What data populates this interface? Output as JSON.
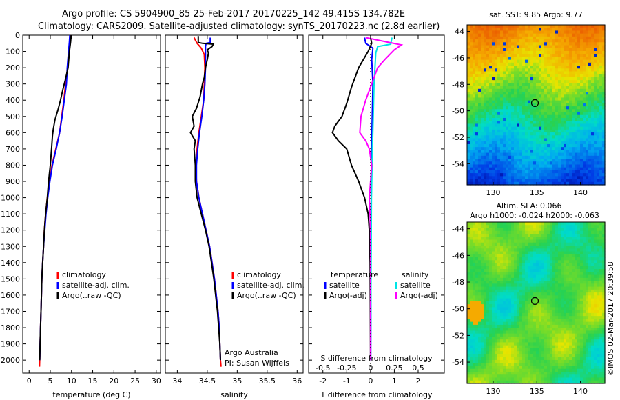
{
  "header": {
    "line1": "Argo profile: CS 5904900_85 25-Feb-2017 20170225_142 49.415S 134.782E",
    "line2": "Climatology: CARS2009. Satellite-adjusted climatology: synTS_20170223.nc (2.8d earlier)"
  },
  "side": {
    "date_stamp": "©IMOS 02-Mar-2017 20:39:58"
  },
  "chart_data": [
    {
      "type": "line",
      "id": "temperature",
      "xlabel": "temperature (deg C)",
      "xlim": [
        -1.5,
        31
      ],
      "xticks": [
        "0",
        "5",
        "10",
        "15",
        "20",
        "25",
        "30"
      ],
      "xtick_values": [
        0,
        5,
        10,
        15,
        20,
        25,
        30
      ],
      "ylim": [
        2080,
        0
      ],
      "yticks": [
        "0",
        "100",
        "200",
        "300",
        "400",
        "500",
        "600",
        "700",
        "800",
        "900",
        "1000",
        "1100",
        "1200",
        "1300",
        "1400",
        "1500",
        "1600",
        "1700",
        "1800",
        "1900",
        "2000"
      ],
      "ytick_values": [
        0,
        100,
        200,
        300,
        400,
        500,
        600,
        700,
        800,
        900,
        1000,
        1100,
        1200,
        1300,
        1400,
        1500,
        1600,
        1700,
        1800,
        1900,
        2000
      ],
      "legend": [
        "climatology",
        "satellite-adj. clim.",
        "Argo(..raw -QC)"
      ],
      "colors": {
        "climatology": "#ff0000",
        "satellite": "#0000ff",
        "argo": "#000000"
      },
      "series": [
        {
          "name": "climatology",
          "color": "#ff0000",
          "points": [
            [
              9.8,
              0
            ],
            [
              9.7,
              40
            ],
            [
              9.4,
              100
            ],
            [
              9.1,
              200
            ],
            [
              8.6,
              300
            ],
            [
              8.2,
              400
            ],
            [
              7.7,
              500
            ],
            [
              7.2,
              600
            ],
            [
              6.3,
              700
            ],
            [
              5.4,
              800
            ],
            [
              4.8,
              900
            ],
            [
              4.3,
              1000
            ],
            [
              3.9,
              1100
            ],
            [
              3.6,
              1200
            ],
            [
              3.4,
              1300
            ],
            [
              3.2,
              1400
            ],
            [
              3.0,
              1500
            ],
            [
              2.9,
              1600
            ],
            [
              2.8,
              1700
            ],
            [
              2.7,
              1800
            ],
            [
              2.6,
              1900
            ],
            [
              2.5,
              2000
            ],
            [
              2.45,
              2040
            ]
          ]
        },
        {
          "name": "satellite-adj. clim.",
          "color": "#0000ff",
          "points": [
            [
              9.6,
              0
            ],
            [
              9.5,
              40
            ],
            [
              9.3,
              100
            ],
            [
              9.0,
              200
            ],
            [
              8.8,
              300
            ],
            [
              8.3,
              400
            ],
            [
              7.8,
              500
            ],
            [
              7.2,
              600
            ],
            [
              6.4,
              700
            ],
            [
              5.5,
              800
            ],
            [
              4.9,
              900
            ],
            [
              4.4,
              1000
            ],
            [
              4.0,
              1100
            ],
            [
              3.7,
              1200
            ],
            [
              3.4,
              1300
            ],
            [
              3.2,
              1400
            ],
            [
              3.0,
              1500
            ],
            [
              2.9,
              1600
            ],
            [
              2.8,
              1700
            ],
            [
              2.7,
              1800
            ],
            [
              2.6,
              1900
            ],
            [
              2.5,
              2000
            ]
          ]
        },
        {
          "name": "Argo(..raw -QC)",
          "color": "#000000",
          "points": [
            [
              9.9,
              0
            ],
            [
              9.8,
              40
            ],
            [
              9.5,
              100
            ],
            [
              9.2,
              200
            ],
            [
              8.5,
              280
            ],
            [
              8.0,
              330
            ],
            [
              7.4,
              400
            ],
            [
              6.8,
              460
            ],
            [
              6.1,
              520
            ],
            [
              5.7,
              580
            ],
            [
              5.5,
              620
            ],
            [
              5.3,
              700
            ],
            [
              5.0,
              800
            ],
            [
              4.6,
              900
            ],
            [
              4.3,
              1000
            ],
            [
              3.9,
              1100
            ],
            [
              3.6,
              1200
            ],
            [
              3.4,
              1300
            ],
            [
              3.2,
              1400
            ],
            [
              3.0,
              1500
            ],
            [
              2.9,
              1600
            ],
            [
              2.8,
              1700
            ],
            [
              2.7,
              1800
            ],
            [
              2.6,
              1900
            ],
            [
              2.5,
              2000
            ]
          ]
        }
      ]
    },
    {
      "type": "line",
      "id": "salinity",
      "xlabel": "salinity",
      "xlim": [
        33.8,
        36.1
      ],
      "xticks": [
        "34",
        "34.5",
        "35",
        "35.5",
        "36"
      ],
      "xtick_values": [
        34,
        34.5,
        35,
        35.5,
        36
      ],
      "ylim": [
        2080,
        0
      ],
      "legend": [
        "climatology",
        "satellite-adj. clim.",
        "Argo(..raw -QC)"
      ],
      "annotations": [
        "Argo Australia",
        "PI: Susan Wijffels"
      ],
      "series": [
        {
          "name": "climatology",
          "color": "#ff0000",
          "points": [
            [
              34.28,
              15
            ],
            [
              34.33,
              50
            ],
            [
              34.4,
              80
            ],
            [
              34.45,
              120
            ],
            [
              34.46,
              200
            ],
            [
              34.45,
              300
            ],
            [
              34.44,
              400
            ],
            [
              34.4,
              500
            ],
            [
              34.36,
              600
            ],
            [
              34.33,
              700
            ],
            [
              34.31,
              800
            ],
            [
              34.32,
              900
            ],
            [
              34.36,
              1000
            ],
            [
              34.42,
              1100
            ],
            [
              34.48,
              1200
            ],
            [
              34.54,
              1300
            ],
            [
              34.58,
              1400
            ],
            [
              34.62,
              1500
            ],
            [
              34.65,
              1600
            ],
            [
              34.68,
              1700
            ],
            [
              34.7,
              1800
            ],
            [
              34.71,
              1900
            ],
            [
              34.72,
              2000
            ],
            [
              34.73,
              2040
            ]
          ]
        },
        {
          "name": "satellite-adj. clim.",
          "color": "#0000ff",
          "points": [
            [
              34.55,
              15
            ],
            [
              34.55,
              45
            ],
            [
              34.48,
              50
            ],
            [
              34.47,
              70
            ],
            [
              34.47,
              110
            ],
            [
              34.47,
              200
            ],
            [
              34.46,
              300
            ],
            [
              34.44,
              400
            ],
            [
              34.41,
              500
            ],
            [
              34.37,
              600
            ],
            [
              34.34,
              700
            ],
            [
              34.32,
              800
            ],
            [
              34.32,
              900
            ],
            [
              34.36,
              1000
            ],
            [
              34.42,
              1100
            ],
            [
              34.48,
              1200
            ],
            [
              34.54,
              1300
            ],
            [
              34.58,
              1400
            ],
            [
              34.62,
              1500
            ],
            [
              34.65,
              1600
            ],
            [
              34.68,
              1700
            ],
            [
              34.7,
              1800
            ],
            [
              34.71,
              1900
            ],
            [
              34.72,
              2000
            ]
          ]
        },
        {
          "name": "Argo(..raw -QC)",
          "color": "#000000",
          "points": [
            [
              34.35,
              5
            ],
            [
              34.35,
              45
            ],
            [
              34.42,
              50
            ],
            [
              34.6,
              55
            ],
            [
              34.58,
              70
            ],
            [
              34.5,
              90
            ],
            [
              34.52,
              110
            ],
            [
              34.5,
              150
            ],
            [
              34.47,
              200
            ],
            [
              34.45,
              260
            ],
            [
              34.42,
              300
            ],
            [
              34.38,
              380
            ],
            [
              34.32,
              450
            ],
            [
              34.25,
              500
            ],
            [
              34.28,
              560
            ],
            [
              34.22,
              600
            ],
            [
              34.3,
              650
            ],
            [
              34.28,
              700
            ],
            [
              34.3,
              800
            ],
            [
              34.3,
              900
            ],
            [
              34.33,
              1000
            ],
            [
              34.4,
              1100
            ],
            [
              34.47,
              1200
            ],
            [
              34.53,
              1300
            ],
            [
              34.57,
              1400
            ],
            [
              34.61,
              1500
            ],
            [
              34.64,
              1600
            ],
            [
              34.67,
              1700
            ],
            [
              34.69,
              1800
            ],
            [
              34.71,
              1900
            ],
            [
              34.72,
              2000
            ]
          ]
        }
      ]
    },
    {
      "type": "line",
      "id": "differences",
      "xlabel": "T difference from climatology",
      "xlabel_top": "S difference from climatology",
      "xlim": [
        -2.6,
        3.1
      ],
      "xticks": [
        "-2",
        "-1",
        "0",
        "1",
        "2"
      ],
      "xtick_values": [
        -2,
        -1,
        0,
        1,
        2
      ],
      "top_ticks": [
        "-0.5",
        "-0.25",
        "0",
        "0.25",
        "0.5"
      ],
      "ylim": [
        2080,
        0
      ],
      "legend_temperature": [
        "temperature",
        "satellite",
        "Argo(-adj)"
      ],
      "legend_salinity": [
        "salinity",
        "satellite",
        "Argo(-adj)"
      ],
      "series": [
        {
          "name": "satellite",
          "quantity": "temperature",
          "color": "#0000ff",
          "points": [
            [
              -0.25,
              15
            ],
            [
              -0.2,
              50
            ],
            [
              0.1,
              80
            ],
            [
              0.05,
              150
            ],
            [
              0.1,
              300
            ],
            [
              0.06,
              600
            ],
            [
              0.04,
              900
            ],
            [
              0.02,
              1200
            ],
            [
              0.01,
              2000
            ]
          ]
        },
        {
          "name": "satellite",
          "quantity": "salinity",
          "color": "#00e5e5",
          "points": [
            [
              0.9,
              15
            ],
            [
              0.85,
              55
            ],
            [
              0.3,
              70
            ],
            [
              0.22,
              110
            ],
            [
              0.15,
              300
            ],
            [
              0.08,
              700
            ],
            [
              0.04,
              1000
            ],
            [
              0.02,
              1500
            ],
            [
              0.0,
              2000
            ]
          ]
        },
        {
          "name": "Argo(-adj)",
          "quantity": "temperature",
          "color": "#000000",
          "points": [
            [
              0.0,
              15
            ],
            [
              0.05,
              50
            ],
            [
              -0.1,
              100
            ],
            [
              -0.5,
              200
            ],
            [
              -0.8,
              320
            ],
            [
              -1.0,
              420
            ],
            [
              -1.2,
              500
            ],
            [
              -1.5,
              560
            ],
            [
              -1.6,
              600
            ],
            [
              -1.35,
              650
            ],
            [
              -1.0,
              700
            ],
            [
              -0.8,
              800
            ],
            [
              -0.5,
              900
            ],
            [
              -0.25,
              1000
            ],
            [
              -0.1,
              1100
            ],
            [
              -0.05,
              1200
            ],
            [
              -0.02,
              1400
            ],
            [
              0.0,
              2000
            ]
          ]
        },
        {
          "name": "Argo(-adj)",
          "quantity": "salinity",
          "color": "#ff00ff",
          "points": [
            [
              -0.2,
              15
            ],
            [
              0.8,
              45
            ],
            [
              1.3,
              60
            ],
            [
              1.0,
              90
            ],
            [
              0.6,
              150
            ],
            [
              0.3,
              200
            ],
            [
              0.1,
              280
            ],
            [
              -0.2,
              400
            ],
            [
              -0.4,
              500
            ],
            [
              -0.45,
              600
            ],
            [
              -0.2,
              650
            ],
            [
              -0.05,
              700
            ],
            [
              0.05,
              800
            ],
            [
              0.0,
              900
            ],
            [
              -0.05,
              1000
            ],
            [
              0.0,
              1200
            ],
            [
              0.0,
              2000
            ]
          ]
        }
      ]
    },
    {
      "type": "heatmap",
      "id": "sst_map",
      "title": "sat. SST: 9.85  Argo: 9.77",
      "xticks": [
        "130",
        "135",
        "140"
      ],
      "yticks": [
        "-44",
        "-46",
        "-48",
        "-50",
        "-52",
        "-54"
      ],
      "xlim": [
        127,
        142.8
      ],
      "ylim": [
        -55.6,
        -43.5
      ],
      "marker": {
        "lon": 134.782,
        "lat": -49.415
      }
    },
    {
      "type": "heatmap",
      "id": "sla_map",
      "title": "Altim. SLA: 0.066",
      "subtitle": "Argo h1000: -0.024  h2000: -0.063",
      "xticks": [
        "130",
        "135",
        "140"
      ],
      "yticks": [
        "-44",
        "-46",
        "-48",
        "-50",
        "-52",
        "-54"
      ],
      "xlim": [
        127,
        142.8
      ],
      "ylim": [
        -55.6,
        -43.5
      ],
      "marker": {
        "lon": 134.782,
        "lat": -49.415
      }
    }
  ]
}
